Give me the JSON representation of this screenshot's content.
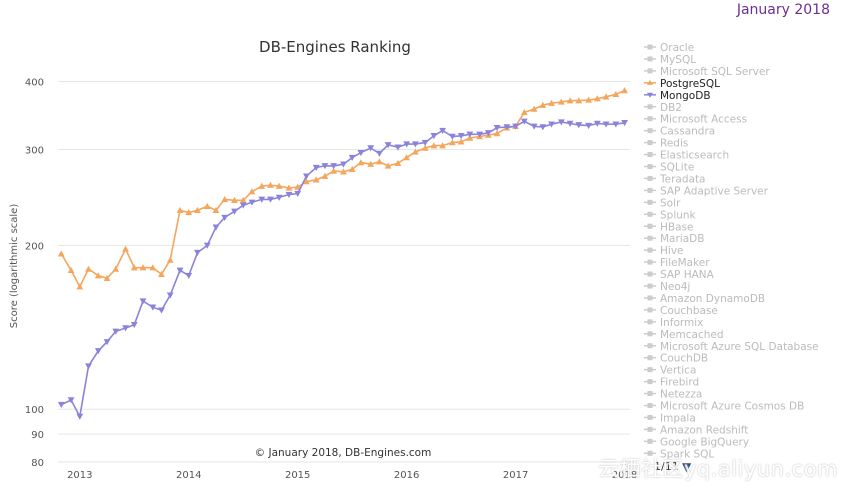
{
  "header": {
    "date": "January 2018"
  },
  "credit": "© January 2018, DB-Engines.com",
  "pager": {
    "text": "1/11",
    "arrow": "▼"
  },
  "watermark": "云栖社区yq.aliyun.com",
  "colors": {
    "postgresql": "#f4a65d",
    "mongodb": "#8a83dc",
    "inactive": "#cccccc",
    "axis": "#555555",
    "grid": "#e6e6e6"
  },
  "chart_data": {
    "type": "line",
    "title": "DB-Engines Ranking",
    "ylabel": "Score (logarithmic scale)",
    "xlabel": "",
    "yscale": "log",
    "ylim": [
      80,
      420
    ],
    "xlim": [
      2012.8,
      2018.05
    ],
    "yticks": [
      80,
      90,
      100,
      200,
      300,
      400
    ],
    "xticks": [
      "2013",
      "2014",
      "2015",
      "2016",
      "2017",
      "2018"
    ],
    "x": [
      2012.83,
      2012.92,
      2013.0,
      2013.08,
      2013.17,
      2013.25,
      2013.33,
      2013.42,
      2013.5,
      2013.58,
      2013.67,
      2013.75,
      2013.83,
      2013.92,
      2014.0,
      2014.08,
      2014.17,
      2014.25,
      2014.33,
      2014.42,
      2014.5,
      2014.58,
      2014.67,
      2014.75,
      2014.83,
      2014.92,
      2015.0,
      2015.08,
      2015.17,
      2015.25,
      2015.33,
      2015.42,
      2015.5,
      2015.58,
      2015.67,
      2015.75,
      2015.83,
      2015.92,
      2016.0,
      2016.08,
      2016.17,
      2016.25,
      2016.33,
      2016.42,
      2016.5,
      2016.58,
      2016.67,
      2016.75,
      2016.83,
      2016.92,
      2017.0,
      2017.08,
      2017.17,
      2017.25,
      2017.33,
      2017.42,
      2017.5,
      2017.58,
      2017.67,
      2017.75,
      2017.83,
      2017.92,
      2018.0
    ],
    "series": [
      {
        "name": "PostgreSQL",
        "marker": "triangle-up",
        "values": [
          193,
          180,
          168,
          181,
          176,
          174,
          181,
          197,
          182,
          182,
          182,
          177,
          188,
          232,
          230,
          232,
          236,
          232,
          243,
          242,
          242,
          251,
          257,
          258,
          257,
          255,
          256,
          262,
          264,
          268,
          274,
          273,
          276,
          284,
          282,
          285,
          280,
          283,
          290,
          297,
          302,
          305,
          305,
          309,
          310,
          315,
          317,
          319,
          321,
          329,
          331,
          351,
          356,
          362,
          365,
          367,
          369,
          369,
          370,
          372,
          375,
          379,
          385
        ]
      },
      {
        "name": "MongoDB",
        "marker": "triangle-down",
        "values": [
          102,
          104,
          97,
          120,
          128,
          133,
          139,
          141,
          143,
          158,
          154,
          152,
          162,
          180,
          176,
          194,
          200,
          216,
          225,
          231,
          237,
          240,
          243,
          243,
          245,
          248,
          249,
          268,
          278,
          280,
          280,
          282,
          290,
          296,
          302,
          295,
          306,
          303,
          307,
          307,
          309,
          318,
          325,
          317,
          318,
          320,
          320,
          322,
          329,
          330,
          331,
          338,
          331,
          330,
          334,
          337,
          335,
          333,
          332,
          335,
          334,
          334,
          336
        ]
      }
    ],
    "legend": {
      "placement": "right",
      "entries": [
        "Oracle",
        "MySQL",
        "Microsoft SQL Server",
        "PostgreSQL",
        "MongoDB",
        "DB2",
        "Microsoft Access",
        "Cassandra",
        "Redis",
        "Elasticsearch",
        "SQLite",
        "Teradata",
        "SAP Adaptive Server",
        "Solr",
        "Splunk",
        "HBase",
        "MariaDB",
        "Hive",
        "FileMaker",
        "SAP HANA",
        "Neo4j",
        "Amazon DynamoDB",
        "Couchbase",
        "Informix",
        "Memcached",
        "Microsoft Azure SQL Database",
        "CouchDB",
        "Vertica",
        "Firebird",
        "Netezza",
        "Microsoft Azure Cosmos DB",
        "Impala",
        "Amazon Redshift",
        "Google BigQuery",
        "Spark SQL"
      ],
      "active": [
        "PostgreSQL",
        "MongoDB"
      ]
    }
  }
}
